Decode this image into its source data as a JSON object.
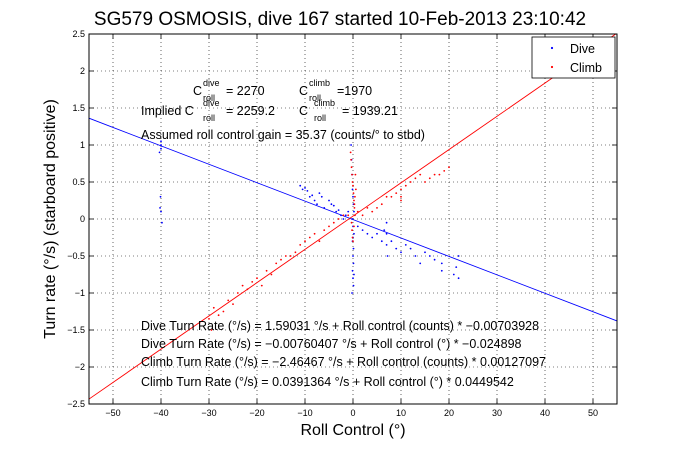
{
  "chart_data": {
    "type": "scatter",
    "title": "SG579 OSMOSIS, dive 167 started 10-Feb-2013 23:10:42",
    "xlabel": "Roll Control (°)",
    "ylabel": "Turn rate (°/s) (starboard positive)",
    "xlim": [
      -55,
      55
    ],
    "ylim": [
      -2.5,
      2.5
    ],
    "x_ticks": [
      "−50",
      "−40",
      "−30",
      "−20",
      "−10",
      "0",
      "10",
      "20",
      "30",
      "40",
      "50"
    ],
    "y_ticks": [
      "2.5",
      "2",
      "1.5",
      "1",
      "0.5",
      "0",
      "−0.5",
      "−1",
      "−1.5",
      "−2",
      "−2.5"
    ],
    "grid": true,
    "legend_position": "top-right",
    "series": [
      {
        "name": "Dive",
        "color": "#0000ff",
        "marker": "dot",
        "points": [
          [
            -40,
            1.05
          ],
          [
            -40,
            1.0
          ],
          [
            -40,
            0.95
          ],
          [
            -40.3,
            0.9
          ],
          [
            -40.1,
            0.3
          ],
          [
            -40.2,
            0.15
          ],
          [
            -40,
            0.1
          ],
          [
            -39.8,
            -0.05
          ],
          [
            -11,
            0.45
          ],
          [
            -10.5,
            0.4
          ],
          [
            -10,
            0.42
          ],
          [
            -9.5,
            0.38
          ],
          [
            -9,
            0.3
          ],
          [
            -8.5,
            0.32
          ],
          [
            -8,
            0.25
          ],
          [
            -7.5,
            0.2
          ],
          [
            -7,
            0.35
          ],
          [
            -6.5,
            0.3
          ],
          [
            -6,
            0.15
          ],
          [
            -5,
            0.25
          ],
          [
            -4.5,
            0.2
          ],
          [
            -4,
            0.18
          ],
          [
            -3.5,
            0.1
          ],
          [
            -3,
            0.12
          ],
          [
            -2.5,
            0.05
          ],
          [
            -2,
            0.0
          ],
          [
            -1.5,
            0.05
          ],
          [
            -1,
            0.1
          ],
          [
            -0.4,
            1.0
          ],
          [
            -0.3,
            0.8
          ],
          [
            -0.2,
            0.6
          ],
          [
            -0.1,
            0.4
          ],
          [
            0,
            0.3
          ],
          [
            0.1,
            0.2
          ],
          [
            0.2,
            0.1
          ],
          [
            -0.2,
            0.0
          ],
          [
            0,
            -0.1
          ],
          [
            0.2,
            -0.2
          ],
          [
            -0.1,
            -0.3
          ],
          [
            0.1,
            -0.4
          ],
          [
            0,
            -0.5
          ],
          [
            0.1,
            -0.6
          ],
          [
            -0.1,
            -0.7
          ],
          [
            0,
            -0.8
          ],
          [
            0.1,
            -0.9
          ],
          [
            -0.2,
            -1.0
          ],
          [
            0.2,
            -0.75
          ],
          [
            0,
            -0.25
          ],
          [
            1,
            -0.1
          ],
          [
            2,
            -0.15
          ],
          [
            3,
            -0.2
          ],
          [
            4,
            -0.25
          ],
          [
            5,
            -0.2
          ],
          [
            6,
            -0.3
          ],
          [
            6.5,
            -0.15
          ],
          [
            7,
            -0.05
          ],
          [
            7,
            -0.2
          ],
          [
            7,
            -0.35
          ],
          [
            7.2,
            -0.5
          ],
          [
            8,
            -0.3
          ],
          [
            9,
            -0.4
          ],
          [
            10,
            -0.45
          ],
          [
            11,
            -0.35
          ],
          [
            12,
            -0.4
          ],
          [
            13,
            -0.5
          ],
          [
            14,
            -0.6
          ],
          [
            15,
            -0.45
          ],
          [
            16,
            -0.5
          ],
          [
            17,
            -0.55
          ],
          [
            18.5,
            -0.6
          ],
          [
            18.5,
            -0.7
          ],
          [
            21,
            -0.75
          ],
          [
            21.5,
            -0.65
          ],
          [
            22,
            -0.8
          ],
          [
            22,
            -0.5
          ]
        ]
      },
      {
        "name": "Climb",
        "color": "#ff0000",
        "marker": "dot",
        "points": [
          [
            -30,
            -1.35
          ],
          [
            -29.5,
            -1.5
          ],
          [
            -29,
            -1.2
          ],
          [
            -28,
            -1.3
          ],
          [
            -27,
            -1.25
          ],
          [
            -26,
            -1.1
          ],
          [
            -25,
            -1.15
          ],
          [
            -24,
            -1.0
          ],
          [
            -23,
            -0.9
          ],
          [
            -22,
            -0.95
          ],
          [
            -21,
            -0.85
          ],
          [
            -20,
            -0.8
          ],
          [
            -19,
            -0.9
          ],
          [
            -18,
            -0.7
          ],
          [
            -17,
            -0.75
          ],
          [
            -16,
            -0.6
          ],
          [
            -15,
            -0.55
          ],
          [
            -14,
            -0.5
          ],
          [
            -13,
            -0.5
          ],
          [
            -12,
            -0.45
          ],
          [
            -11,
            -0.35
          ],
          [
            -10,
            -0.3
          ],
          [
            -9,
            -0.25
          ],
          [
            -8,
            -0.2
          ],
          [
            -7,
            -0.3
          ],
          [
            -6,
            -0.15
          ],
          [
            -5,
            -0.1
          ],
          [
            -4,
            -0.05
          ],
          [
            -3,
            0.0
          ],
          [
            -2,
            0.05
          ],
          [
            -1,
            0.05
          ],
          [
            -0.5,
            0.9
          ],
          [
            -0.4,
            0.8
          ],
          [
            -0.3,
            0.7
          ],
          [
            -0.2,
            0.6
          ],
          [
            -0.1,
            0.5
          ],
          [
            0,
            0.45
          ],
          [
            0.1,
            0.35
          ],
          [
            0.2,
            0.25
          ],
          [
            0.3,
            0.15
          ],
          [
            0.4,
            0.05
          ],
          [
            -0.3,
            -0.05
          ],
          [
            -0.2,
            -0.15
          ],
          [
            -0.1,
            -0.25
          ],
          [
            0,
            -0.3
          ],
          [
            0.2,
            -0.1
          ],
          [
            0.4,
            0.3
          ],
          [
            0.5,
            0.6
          ],
          [
            0.6,
            0.4
          ],
          [
            0.3,
            0.2
          ],
          [
            1,
            0.1
          ],
          [
            2,
            0.05
          ],
          [
            3,
            0.15
          ],
          [
            4,
            0.1
          ],
          [
            5,
            0.15
          ],
          [
            6,
            0.2
          ],
          [
            7,
            0.3
          ],
          [
            8,
            0.3
          ],
          [
            9,
            0.35
          ],
          [
            10,
            0.4
          ],
          [
            10,
            0.3
          ],
          [
            10,
            0.25
          ],
          [
            11,
            0.45
          ],
          [
            12,
            0.5
          ],
          [
            13,
            0.55
          ],
          [
            14,
            0.6
          ],
          [
            15,
            0.5
          ],
          [
            16,
            0.55
          ],
          [
            17,
            0.6
          ],
          [
            18,
            0.6
          ],
          [
            19,
            0.65
          ],
          [
            20,
            0.7
          ]
        ]
      }
    ],
    "fit_lines": [
      {
        "color": "#0000ff",
        "slope": -0.024898,
        "intercept": -0.00760407
      },
      {
        "color": "#ff0000",
        "slope": 0.0449542,
        "intercept": 0.0391364
      }
    ],
    "annotations": {
      "c_dive_main": "C",
      "c_dive_sup": "dive",
      "c_dive_sub": "roll",
      "c_dive_val": "= 2270",
      "c_climb_main": "C",
      "c_climb_sup": "climb",
      "c_climb_sub": "roll",
      "c_climb_val": "=1970",
      "implied_prefix": "Implied C",
      "implied_dive_sup": "dive",
      "implied_dive_sub": "roll",
      "implied_dive_val": "= 2259.2",
      "implied_climb_main": "C",
      "implied_climb_sup": "climb",
      "implied_climb_sub": "roll",
      "implied_climb_val": "= 1939.21",
      "assumed_gain": "Assumed roll control gain = 35.37 (counts/° to stbd)",
      "fit_lines_text": [
        "Dive Turn Rate (°/s) = 1.59031 °/s + Roll control (counts) * −0.00703928",
        "Dive Turn Rate (°/s) = −0.00760407 °/s + Roll control (°) * −0.024898",
        "Climb Turn Rate (°/s) = −2.46467 °/s + Roll control (counts) * 0.00127097",
        "Climb Turn Rate (°/s) = 0.0391364 °/s + Roll control (°) * 0.0449542"
      ]
    }
  }
}
